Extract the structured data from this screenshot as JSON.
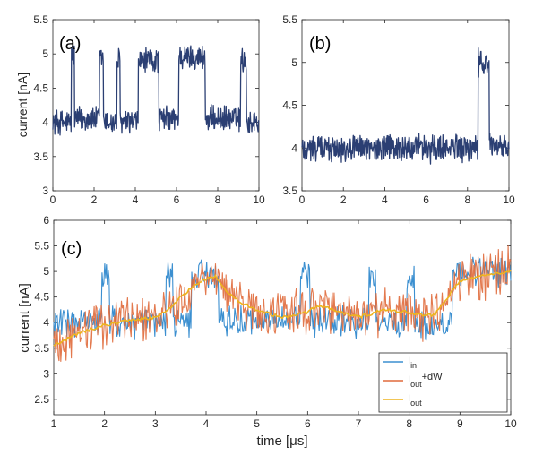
{
  "chart_data": [
    {
      "type": "line",
      "panel_label": "(a)",
      "ylabel": "current [nA]",
      "xlim": [
        0,
        10
      ],
      "ylim": [
        3,
        5.5
      ],
      "x_ticks": [
        "0",
        "2",
        "4",
        "6",
        "8",
        "10"
      ],
      "y_ticks": [
        "3",
        "3.5",
        "4",
        "4.5",
        "5",
        "5.5"
      ],
      "series": [
        {
          "name": "current",
          "color": "#2b3f73",
          "description": "two-state telegraph noise around 4.0 nA with switching to about 4.9 nA",
          "segments": [
            {
              "x0": 0.0,
              "x1": 0.9,
              "level": 4.0
            },
            {
              "x0": 0.9,
              "x1": 1.05,
              "level": 5.0
            },
            {
              "x0": 1.05,
              "x1": 2.25,
              "level": 4.05
            },
            {
              "x0": 2.25,
              "x1": 2.45,
              "level": 4.95
            },
            {
              "x0": 2.45,
              "x1": 3.1,
              "level": 4.0
            },
            {
              "x0": 3.1,
              "x1": 3.25,
              "level": 4.9
            },
            {
              "x0": 3.25,
              "x1": 4.15,
              "level": 4.0
            },
            {
              "x0": 4.15,
              "x1": 5.15,
              "level": 4.9
            },
            {
              "x0": 5.15,
              "x1": 6.1,
              "level": 4.05
            },
            {
              "x0": 6.1,
              "x1": 7.4,
              "level": 4.95
            },
            {
              "x0": 7.4,
              "x1": 9.1,
              "level": 4.05
            },
            {
              "x0": 9.1,
              "x1": 9.4,
              "level": 4.9
            },
            {
              "x0": 9.4,
              "x1": 10.0,
              "level": 4.0
            }
          ],
          "noise_amplitude": 0.18
        }
      ]
    },
    {
      "type": "line",
      "panel_label": "(b)",
      "ylabel": "",
      "xlim": [
        0,
        10
      ],
      "ylim": [
        3.5,
        5.5
      ],
      "x_ticks": [
        "0",
        "2",
        "4",
        "6",
        "8",
        "10"
      ],
      "y_ticks": [
        "3.5",
        "4",
        "4.5",
        "5",
        "5.5"
      ],
      "series": [
        {
          "name": "current",
          "color": "#2b3f73",
          "description": "noisy baseline around 4.0 nA with a single excursion to about 5.0 nA near 8.5-9 us",
          "segments": [
            {
              "x0": 0.0,
              "x1": 8.5,
              "level": 4.0
            },
            {
              "x0": 8.5,
              "x1": 9.05,
              "level": 5.0
            },
            {
              "x0": 9.05,
              "x1": 10.0,
              "level": 4.0
            }
          ],
          "noise_amplitude": 0.16
        }
      ]
    },
    {
      "type": "line",
      "panel_label": "(c)",
      "xlabel": "time [μs]",
      "ylabel": "current [nA]",
      "xlim": [
        1,
        10
      ],
      "ylim": [
        2.2,
        6
      ],
      "x_ticks": [
        "1",
        "2",
        "3",
        "4",
        "5",
        "6",
        "7",
        "8",
        "9",
        "10"
      ],
      "y_ticks": [
        "2.5",
        "3",
        "3.5",
        "4",
        "4.5",
        "5",
        "5.5",
        "6"
      ],
      "legend": {
        "position": "bottom-right",
        "entries": [
          {
            "base": "I",
            "sub": "in",
            "suffix": "",
            "color": "#3b8fd0"
          },
          {
            "base": "I",
            "sub": "out",
            "suffix": "+dW",
            "color": "#e06a3b"
          },
          {
            "base": "I",
            "sub": "out",
            "suffix": "",
            "color": "#edb41e"
          }
        ]
      },
      "series": [
        {
          "name": "I_in",
          "color": "#3b8fd0",
          "description": "telegraph signal between about 3.9 and 4.9 nA",
          "segments": [
            {
              "x0": 1.0,
              "x1": 1.95,
              "level": 4.0
            },
            {
              "x0": 1.95,
              "x1": 2.1,
              "level": 4.9
            },
            {
              "x0": 2.1,
              "x1": 3.2,
              "level": 4.0
            },
            {
              "x0": 3.2,
              "x1": 3.35,
              "level": 4.85
            },
            {
              "x0": 3.35,
              "x1": 3.7,
              "level": 4.0
            },
            {
              "x0": 3.7,
              "x1": 4.25,
              "level": 4.95
            },
            {
              "x0": 4.25,
              "x1": 5.85,
              "level": 4.05
            },
            {
              "x0": 5.85,
              "x1": 6.05,
              "level": 4.9
            },
            {
              "x0": 6.05,
              "x1": 7.2,
              "level": 4.0
            },
            {
              "x0": 7.2,
              "x1": 7.35,
              "level": 4.9
            },
            {
              "x0": 7.35,
              "x1": 7.95,
              "level": 4.0
            },
            {
              "x0": 7.95,
              "x1": 8.1,
              "level": 4.8
            },
            {
              "x0": 8.1,
              "x1": 8.85,
              "level": 3.95
            },
            {
              "x0": 8.85,
              "x1": 10.0,
              "level": 5.0
            }
          ],
          "noise_amplitude": 0.3
        },
        {
          "name": "I_out+dW",
          "color": "#e06a3b",
          "description": "filtered estimate plus Wiener noise, wide spread around the smooth output",
          "noise_amplitude": 0.45
        },
        {
          "name": "I_out",
          "color": "#edb41e",
          "description": "smooth filtered current estimate",
          "x": [
            1.0,
            1.5,
            2.0,
            2.5,
            3.0,
            3.2,
            3.5,
            3.8,
            4.0,
            4.2,
            4.4,
            4.6,
            5.0,
            5.5,
            6.0,
            6.2,
            6.5,
            7.0,
            7.5,
            8.0,
            8.3,
            8.5,
            8.8,
            9.0,
            9.5,
            10.0
          ],
          "y": [
            3.55,
            3.8,
            3.95,
            4.05,
            4.1,
            4.2,
            4.5,
            4.75,
            4.85,
            4.9,
            4.6,
            4.45,
            4.25,
            4.1,
            4.2,
            4.35,
            4.25,
            4.1,
            4.25,
            4.2,
            4.15,
            4.15,
            4.55,
            4.8,
            4.95,
            5.0
          ]
        }
      ]
    }
  ]
}
